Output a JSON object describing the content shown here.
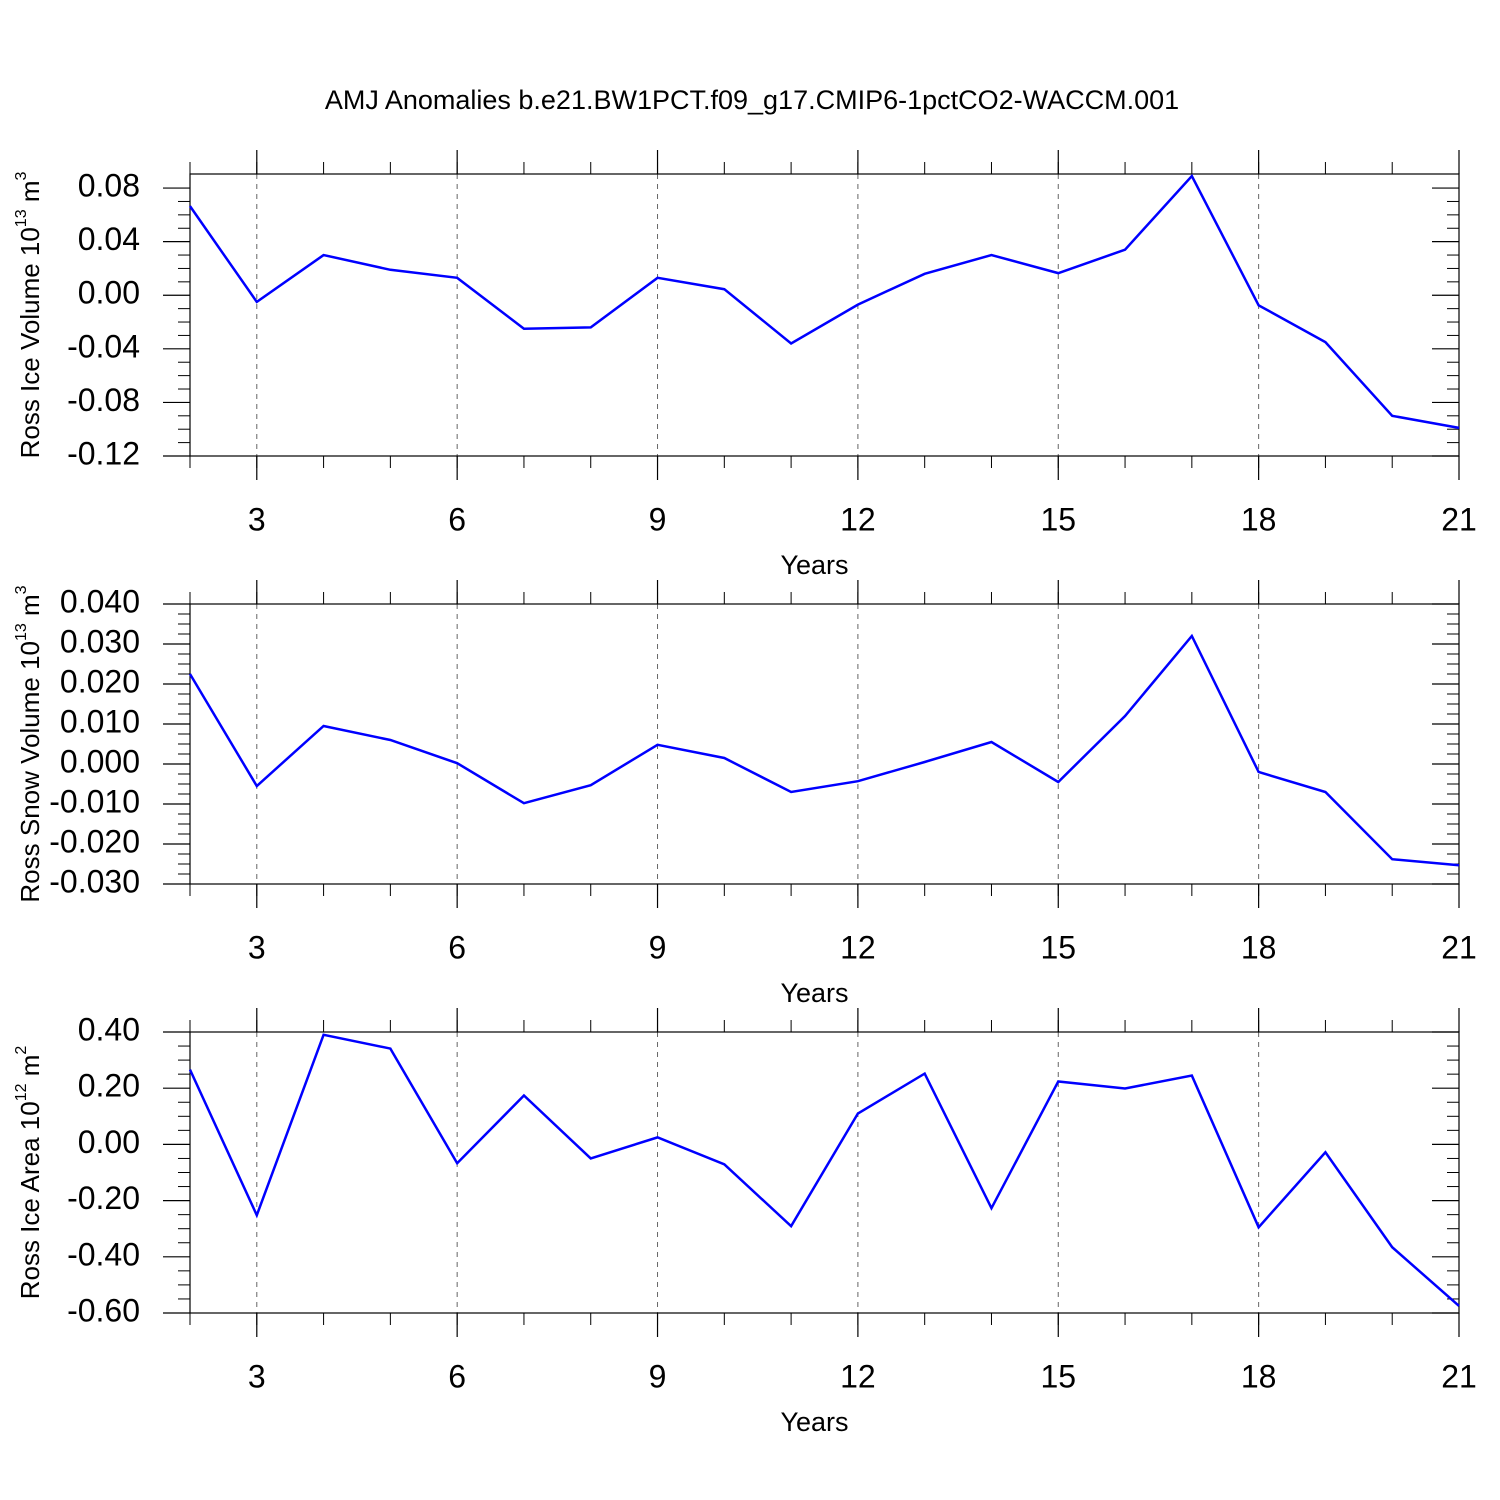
{
  "title": "AMJ Anomalies b.e21.BW1PCT.f09_g17.CMIP6-1pctCO2-WACCM.001",
  "chart_data": [
    {
      "type": "line",
      "ylabel": [
        "Ross Ice Volume 10",
        "13",
        " m",
        "3"
      ],
      "xlabel": "Years",
      "x": [
        2,
        3,
        4,
        5,
        6,
        7,
        8,
        9,
        10,
        11,
        12,
        13,
        14,
        15,
        16,
        17,
        18,
        19,
        20,
        21
      ],
      "values": [
        0.0665,
        -0.005,
        0.03,
        0.019,
        0.013,
        -0.025,
        -0.024,
        0.013,
        0.0045,
        -0.036,
        -0.007,
        0.016,
        0.03,
        0.0165,
        0.034,
        0.089,
        -0.0075,
        -0.035,
        -0.09,
        -0.099
      ],
      "color": "#0000ff",
      "xlim": [
        2,
        21
      ],
      "xticks": [
        3,
        6,
        9,
        12,
        15,
        18,
        21
      ],
      "ylim": [
        -0.12,
        0.0905
      ],
      "yticks": [
        0.08,
        0.04,
        {
          "value": 0,
          "label": "0.00"
        },
        -0.04,
        -0.08,
        -0.12
      ],
      "grid": true
    },
    {
      "type": "line",
      "ylabel": [
        "Ross Snow Volume 10",
        "13",
        " m",
        "3"
      ],
      "xlabel": "Years",
      "x": [
        2,
        3,
        4,
        5,
        6,
        7,
        8,
        9,
        10,
        11,
        12,
        13,
        14,
        15,
        16,
        17,
        18,
        19,
        20,
        21
      ],
      "values": [
        0.0225,
        -0.0055,
        0.0095,
        0.006,
        0.0002,
        -0.0098,
        -0.0053,
        0.0048,
        0.0015,
        -0.007,
        -0.0043,
        0.0005,
        0.0055,
        -0.0045,
        0.012,
        0.032,
        -0.002,
        -0.007,
        -0.0238,
        -0.0253
      ],
      "color": "#0000ff",
      "xlim": [
        2,
        21
      ],
      "xticks": [
        3,
        6,
        9,
        12,
        15,
        18,
        21
      ],
      "ylim": [
        -0.03,
        0.04
      ],
      "yticks": [
        {
          "value": 0.04,
          "label": "0.040"
        },
        {
          "value": 0.03,
          "label": "0.030"
        },
        {
          "value": 0.02,
          "label": "0.020"
        },
        {
          "value": 0.01,
          "label": "0.010"
        },
        {
          "value": 0,
          "label": "0.000"
        },
        {
          "value": -0.01,
          "label": "-0.010"
        },
        {
          "value": -0.02,
          "label": "-0.020"
        },
        {
          "value": -0.03,
          "label": "-0.030"
        }
      ],
      "grid": true
    },
    {
      "type": "line",
      "ylabel": [
        "Ross Ice Area 10",
        "12",
        " m",
        "2"
      ],
      "xlabel": "Years",
      "x": [
        2,
        3,
        4,
        5,
        6,
        7,
        8,
        9,
        10,
        11,
        12,
        13,
        14,
        15,
        16,
        17,
        18,
        19,
        20,
        21
      ],
      "values": [
        0.266,
        -0.252,
        0.39,
        0.341,
        -0.067,
        0.174,
        -0.05,
        0.025,
        -0.071,
        -0.291,
        0.11,
        0.252,
        -0.227,
        0.224,
        0.199,
        0.245,
        -0.295,
        -0.028,
        -0.366,
        -0.575
      ],
      "color": "#0000ff",
      "xlim": [
        2,
        21
      ],
      "xticks": [
        3,
        6,
        9,
        12,
        15,
        18,
        21
      ],
      "ylim": [
        -0.6,
        0.4
      ],
      "yticks": [
        {
          "value": 0.4,
          "label": "0.40"
        },
        {
          "value": 0.2,
          "label": "0.20"
        },
        {
          "value": 0,
          "label": "0.00"
        },
        {
          "value": -0.2,
          "label": "-0.20"
        },
        {
          "value": -0.4,
          "label": "-0.40"
        },
        {
          "value": -0.6,
          "label": "-0.60"
        }
      ],
      "grid": true
    }
  ]
}
